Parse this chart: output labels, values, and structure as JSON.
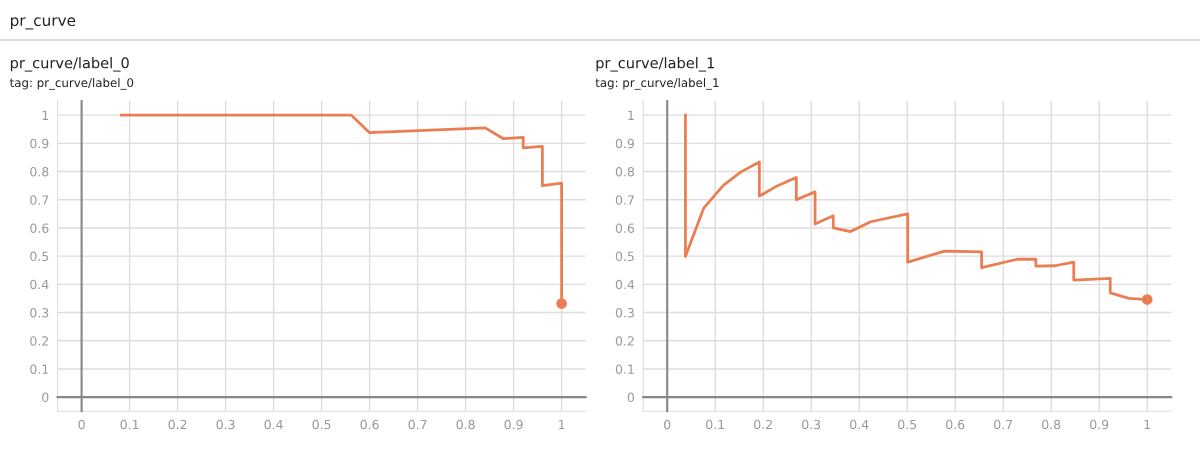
{
  "chart_data": [
    {
      "type": "line",
      "title": "pr_curve/label_0",
      "subtitle": "tag: pr_curve/label_0",
      "annotations": [
        "pr_curve"
      ],
      "xlim": [
        -0.05,
        1.05
      ],
      "ylim": [
        -0.05,
        1.05
      ],
      "xticks": [
        0,
        0.1,
        0.2,
        0.3,
        0.4,
        0.5,
        0.6,
        0.7,
        0.8,
        0.9,
        1
      ],
      "yticks": [
        0,
        0.1,
        0.2,
        0.3,
        0.4,
        0.5,
        0.6,
        0.7,
        0.8,
        0.9,
        1
      ],
      "grid": true,
      "series": [
        {
          "type": "line",
          "color": "#ea7e52",
          "x": [
            0.083,
            0.562,
            0.6,
            0.841,
            0.878,
            0.92,
            0.92,
            0.96,
            0.96,
            1.0,
            1.0
          ],
          "values": [
            1.0,
            1.0,
            0.938,
            0.955,
            0.917,
            0.921,
            0.884,
            0.889,
            0.75,
            0.759,
            0.332
          ]
        },
        {
          "type": "scatter",
          "color": "#ea7e52",
          "marker": "circle",
          "x": [
            1.0
          ],
          "values": [
            0.332
          ]
        }
      ]
    },
    {
      "type": "line",
      "title": "pr_curve/label_1",
      "subtitle": "tag: pr_curve/label_1",
      "xlim": [
        -0.05,
        1.05
      ],
      "ylim": [
        -0.05,
        1.05
      ],
      "xticks": [
        0,
        0.1,
        0.2,
        0.3,
        0.4,
        0.5,
        0.6,
        0.7,
        0.8,
        0.9,
        1
      ],
      "yticks": [
        0,
        0.1,
        0.2,
        0.3,
        0.4,
        0.5,
        0.6,
        0.7,
        0.8,
        0.9,
        1
      ],
      "grid": true,
      "series": [
        {
          "type": "line",
          "color": "#ea7e52",
          "x": [
            0.038,
            0.038,
            0.076,
            0.117,
            0.153,
            0.192,
            0.192,
            0.23,
            0.269,
            0.269,
            0.308,
            0.308,
            0.346,
            0.346,
            0.382,
            0.424,
            0.501,
            0.501,
            0.578,
            0.655,
            0.655,
            0.729,
            0.768,
            0.768,
            0.808,
            0.847,
            0.847,
            0.923,
            0.923,
            0.962,
            1.0
          ],
          "values": [
            1.0,
            0.499,
            0.67,
            0.751,
            0.798,
            0.834,
            0.713,
            0.75,
            0.779,
            0.7,
            0.728,
            0.614,
            0.643,
            0.6,
            0.587,
            0.622,
            0.65,
            0.479,
            0.518,
            0.515,
            0.459,
            0.489,
            0.489,
            0.465,
            0.466,
            0.479,
            0.415,
            0.421,
            0.37,
            0.35,
            0.346
          ]
        },
        {
          "type": "scatter",
          "color": "#ea7e52",
          "marker": "circle",
          "x": [
            1.0
          ],
          "values": [
            0.346
          ]
        }
      ]
    }
  ]
}
